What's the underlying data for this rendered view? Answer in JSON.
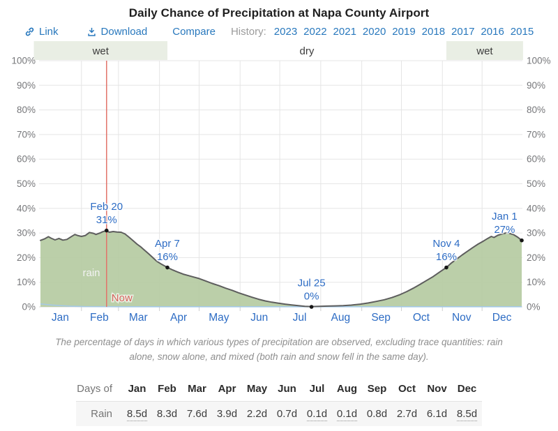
{
  "title": "Daily Chance of Precipitation at Napa County Airport",
  "toolbar": {
    "link_label": "Link",
    "download_label": "Download",
    "compare_label": "Compare",
    "history_label": "History:",
    "years": [
      "2023",
      "2022",
      "2021",
      "2020",
      "2019",
      "2018",
      "2017",
      "2016",
      "2015"
    ]
  },
  "chart_data": {
    "type": "area",
    "title": "Daily Chance of Precipitation at Napa County Airport",
    "x_axis": {
      "months": [
        "Jan",
        "Feb",
        "Mar",
        "Apr",
        "May",
        "Jun",
        "Jul",
        "Aug",
        "Sep",
        "Oct",
        "Nov",
        "Dec"
      ]
    },
    "y_axis": {
      "min": 0,
      "max": 100,
      "tick_step": 10,
      "tick_suffix": "%"
    },
    "grid": true,
    "colors": {
      "area_fill": "#b5cba2",
      "area_line": "#5d5d5d",
      "season_band": "#e9eee4",
      "annotation_text": "#2d6cc4",
      "month_label": "#2d6cc4",
      "axis_label": "#76777a",
      "grid_line": "#e5e5e5",
      "axis_line": "#d8d8d8",
      "now_line": "#e2736a",
      "now_text": "#d3625a",
      "mixed_trace": "#a5c9e6",
      "rain_text": "#f3f3f3",
      "band_text": "#3c3c3c",
      "dot": "#161616"
    },
    "seasons": [
      {
        "label": "wet",
        "start_day": -4,
        "end_day": 97,
        "band": true
      },
      {
        "label": "dry",
        "start_day": 97,
        "end_day": 308,
        "band": false
      },
      {
        "label": "wet",
        "start_day": 308,
        "end_day": 366,
        "band": true
      }
    ],
    "now": {
      "day": 51,
      "label": "Now"
    },
    "series": [
      {
        "name": "rain",
        "label": "rain",
        "points": [
          [
            1,
            27.0
          ],
          [
            4,
            27.6
          ],
          [
            7,
            28.5
          ],
          [
            9,
            27.9
          ],
          [
            12,
            27.2
          ],
          [
            15,
            27.8
          ],
          [
            18,
            27.1
          ],
          [
            21,
            27.4
          ],
          [
            24,
            28.4
          ],
          [
            27,
            29.4
          ],
          [
            29,
            29.0
          ],
          [
            32,
            28.6
          ],
          [
            35,
            29.0
          ],
          [
            38,
            30.2
          ],
          [
            41,
            29.9
          ],
          [
            43,
            29.4
          ],
          [
            46,
            30.0
          ],
          [
            48,
            30.5
          ],
          [
            51,
            31.0
          ],
          [
            53,
            30.3
          ],
          [
            56,
            30.6
          ],
          [
            59,
            30.4
          ],
          [
            62,
            30.3
          ],
          [
            65,
            29.6
          ],
          [
            68,
            28.3
          ],
          [
            71,
            26.9
          ],
          [
            74,
            25.5
          ],
          [
            77,
            24.3
          ],
          [
            80,
            22.9
          ],
          [
            83,
            21.5
          ],
          [
            86,
            20.0
          ],
          [
            89,
            18.5
          ],
          [
            92,
            17.5
          ],
          [
            97,
            16.0
          ],
          [
            101,
            15.0
          ],
          [
            105,
            14.1
          ],
          [
            109,
            13.3
          ],
          [
            113,
            12.7
          ],
          [
            117,
            12.1
          ],
          [
            121,
            11.5
          ],
          [
            126,
            10.5
          ],
          [
            131,
            9.5
          ],
          [
            136,
            8.6
          ],
          [
            141,
            7.6
          ],
          [
            146,
            6.7
          ],
          [
            151,
            5.7
          ],
          [
            156,
            4.8
          ],
          [
            161,
            3.9
          ],
          [
            166,
            3.1
          ],
          [
            171,
            2.4
          ],
          [
            176,
            1.9
          ],
          [
            181,
            1.5
          ],
          [
            186,
            1.1
          ],
          [
            191,
            0.8
          ],
          [
            196,
            0.5
          ],
          [
            201,
            0.2
          ],
          [
            206,
            0.1
          ],
          [
            212,
            0.2
          ],
          [
            218,
            0.3
          ],
          [
            224,
            0.4
          ],
          [
            230,
            0.5
          ],
          [
            236,
            0.7
          ],
          [
            243,
            1.1
          ],
          [
            249,
            1.6
          ],
          [
            255,
            2.2
          ],
          [
            261,
            2.9
          ],
          [
            267,
            3.8
          ],
          [
            273,
            5.0
          ],
          [
            278,
            6.2
          ],
          [
            283,
            7.6
          ],
          [
            288,
            9.1
          ],
          [
            293,
            10.7
          ],
          [
            298,
            12.3
          ],
          [
            303,
            14.2
          ],
          [
            308,
            16.0
          ],
          [
            312,
            17.9
          ],
          [
            316,
            19.5
          ],
          [
            320,
            21.1
          ],
          [
            324,
            22.6
          ],
          [
            328,
            24.1
          ],
          [
            332,
            25.5
          ],
          [
            336,
            26.7
          ],
          [
            339,
            27.7
          ],
          [
            342,
            28.6
          ],
          [
            344,
            28.2
          ],
          [
            347,
            29.1
          ],
          [
            350,
            29.6
          ],
          [
            353,
            30.0
          ],
          [
            356,
            29.8
          ],
          [
            359,
            29.3
          ],
          [
            362,
            28.3
          ],
          [
            365,
            27.0
          ]
        ]
      }
    ],
    "mixed_trace": {
      "points": [
        [
          1,
          1.2
        ],
        [
          5,
          1.0
        ],
        [
          10,
          0.75
        ],
        [
          16,
          0.5
        ],
        [
          24,
          0.25
        ],
        [
          34,
          0.1
        ],
        [
          60,
          0.05
        ],
        [
          365,
          0.05
        ]
      ]
    },
    "annotations": [
      {
        "date": "Feb 20",
        "value": "31%",
        "day": 51,
        "pct": 31
      },
      {
        "date": "Apr 7",
        "value": "16%",
        "day": 97,
        "pct": 16
      },
      {
        "date": "Jul 25",
        "value": "0%",
        "day": 206,
        "pct": 0
      },
      {
        "date": "Nov 4",
        "value": "16%",
        "day": 308,
        "pct": 16
      },
      {
        "date": "Jan 1",
        "value": "27%",
        "day": 365,
        "pct": 27,
        "label_day": 352
      }
    ]
  },
  "caption": {
    "line1": "The percentage of days in which various types of precipitation are observed, excluding trace quantities: rain",
    "line2": "alone, snow alone, and mixed (both rain and snow fell in the same day)."
  },
  "table": {
    "corner_label": "Days of",
    "months": [
      "Jan",
      "Feb",
      "Mar",
      "Apr",
      "May",
      "Jun",
      "Jul",
      "Aug",
      "Sep",
      "Oct",
      "Nov",
      "Dec"
    ],
    "rows": [
      {
        "label": "Rain",
        "values": [
          "8.5d",
          "8.3d",
          "7.6d",
          "3.9d",
          "2.2d",
          "0.7d",
          "0.1d",
          "0.1d",
          "0.8d",
          "2.7d",
          "6.1d",
          "8.5d"
        ],
        "underlined": [
          true,
          false,
          false,
          false,
          false,
          false,
          true,
          true,
          false,
          false,
          false,
          true
        ]
      }
    ]
  }
}
